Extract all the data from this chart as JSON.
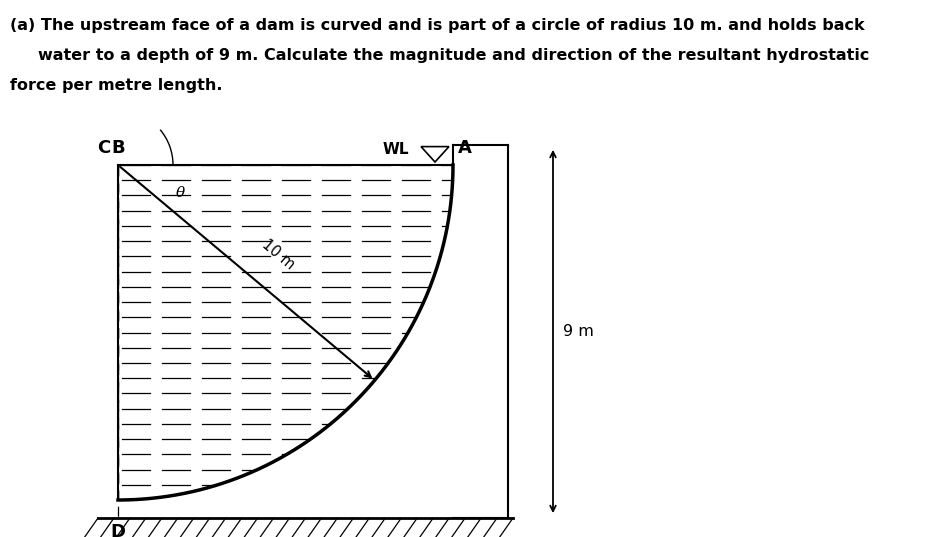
{
  "text_lines": [
    "(a) The upstream face of a dam is curved and is part of a circle of radius 10 m. and holds back",
    "water to a depth of 9 m. Calculate the magnitude and direction of the resultant hydrostatic",
    "force per metre length."
  ],
  "labels": {
    "C": "C",
    "B": "B",
    "WL": "WL",
    "A": "A",
    "D": "D",
    "theta": "θ",
    "radius": "10 m",
    "depth": "9 m"
  },
  "colors": {
    "background": "#ffffff",
    "black": "#000000"
  },
  "figsize": [
    9.41,
    5.37
  ],
  "dpi": 100
}
